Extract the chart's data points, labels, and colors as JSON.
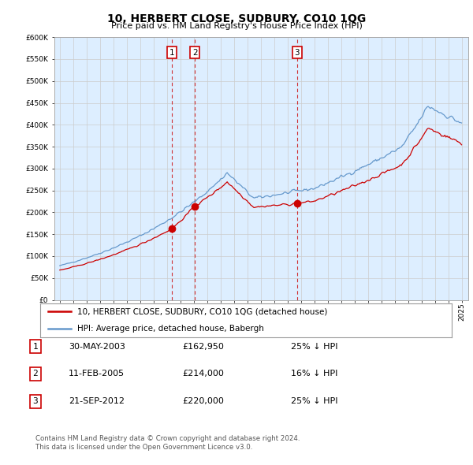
{
  "title": "10, HERBERT CLOSE, SUDBURY, CO10 1QG",
  "subtitle": "Price paid vs. HM Land Registry's House Price Index (HPI)",
  "legend_line1": "10, HERBERT CLOSE, SUDBURY, CO10 1QG (detached house)",
  "legend_line2": "HPI: Average price, detached house, Babergh",
  "sale1_date": "30-MAY-2003",
  "sale1_price": 162950,
  "sale1_label": "25% ↓ HPI",
  "sale2_date": "11-FEB-2005",
  "sale2_price": 214000,
  "sale2_label": "16% ↓ HPI",
  "sale3_date": "21-SEP-2012",
  "sale3_price": 220000,
  "sale3_label": "25% ↓ HPI",
  "footnote": "Contains HM Land Registry data © Crown copyright and database right 2024.\nThis data is licensed under the Open Government Licence v3.0.",
  "hpi_color": "#6699cc",
  "price_color": "#cc0000",
  "bg_color": "#ddeeff",
  "plot_bg": "#ffffff",
  "ylim": [
    0,
    600000
  ],
  "yticks": [
    0,
    50000,
    100000,
    150000,
    200000,
    250000,
    300000,
    350000,
    400000,
    450000,
    500000,
    550000,
    600000
  ],
  "sale_times": [
    2003.37,
    2005.09,
    2012.72
  ],
  "sale_prices": [
    162950,
    214000,
    220000
  ]
}
